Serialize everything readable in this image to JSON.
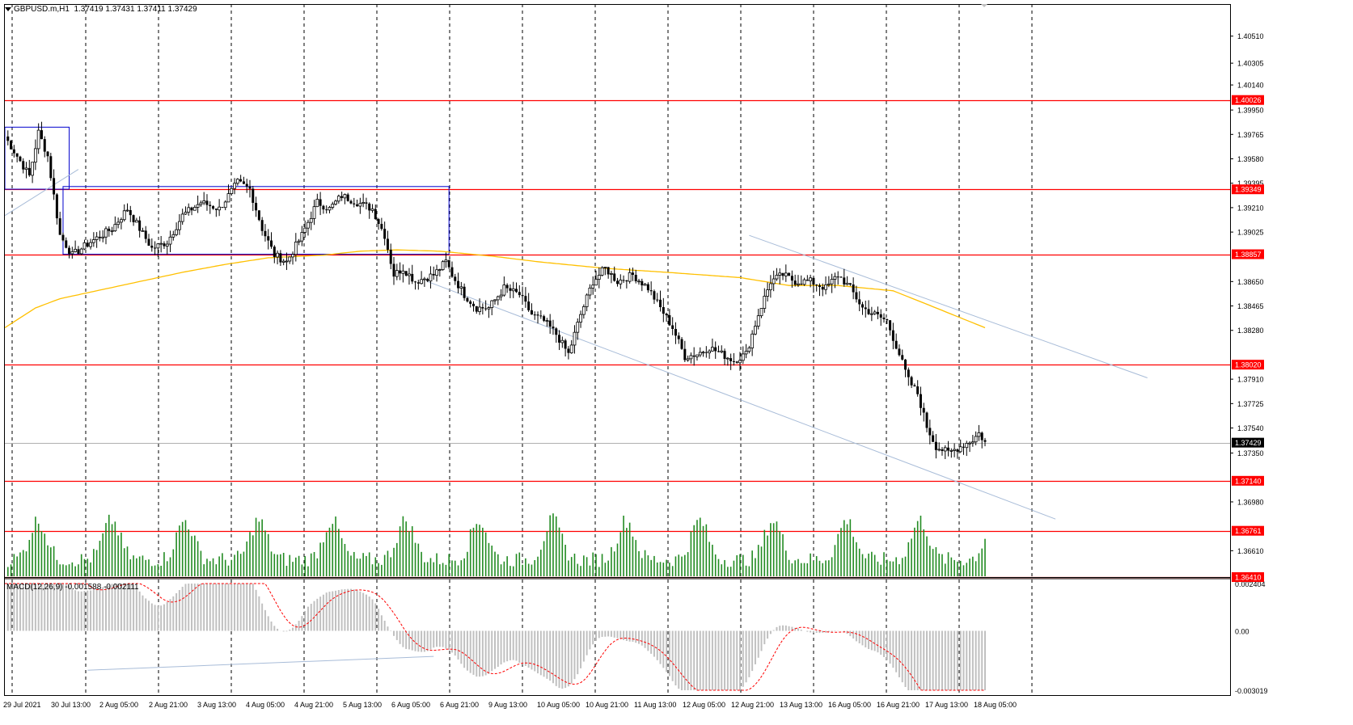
{
  "header": {
    "symbol": "GBPUSD.m,H1",
    "ohlc": "1.37419 1.37431 1.37411 1.37429"
  },
  "macd": {
    "label": "MACD(12,26,9) -0.001588 -0.002111",
    "scale_labels": [
      "0.002404",
      "0.00",
      "-0.003019"
    ]
  },
  "colors": {
    "background": "#ffffff",
    "candle": "#000000",
    "volume": "#228b22",
    "support_resistance": "#ff0000",
    "moving_average": "#ffc000",
    "range_box": "#0000cd",
    "channel": "#a8bcd8",
    "macd_histogram": "#c0c0c0",
    "macd_signal": "#ff0000",
    "price_tag_red": "#ff0000",
    "price_tag_current": "#000000"
  },
  "chart_data": {
    "type": "candlestick",
    "symbol": "GBPUSD.m",
    "timeframe": "H1",
    "ylim": [
      1.3641,
      1.406
    ],
    "y_tick_labels": [
      "1.40510",
      "1.40305",
      "1.40140",
      "1.39950",
      "1.39765",
      "1.39580",
      "1.39395",
      "1.39210",
      "1.39025",
      "1.38650",
      "1.38465",
      "1.38280",
      "1.37910",
      "1.37725",
      "1.37540",
      "1.37350",
      "1.36980",
      "1.36610"
    ],
    "x_tick_labels": [
      "29 Jul 2021",
      "30 Jul 13:00",
      "2 Aug 05:00",
      "2 Aug 21:00",
      "3 Aug 13:00",
      "4 Aug 05:00",
      "4 Aug 21:00",
      "5 Aug 13:00",
      "6 Aug 05:00",
      "6 Aug 21:00",
      "9 Aug 13:00",
      "10 Aug 05:00",
      "10 Aug 21:00",
      "11 Aug 13:00",
      "12 Aug 05:00",
      "12 Aug 21:00",
      "13 Aug 13:00",
      "16 Aug 05:00",
      "16 Aug 21:00",
      "17 Aug 13:00",
      "18 Aug 05:00"
    ],
    "horizontal_levels": [
      {
        "value": 1.40026,
        "label": "1.40026"
      },
      {
        "value": 1.39349,
        "label": "1.39349"
      },
      {
        "value": 1.38857,
        "label": "1.38857"
      },
      {
        "value": 1.3802,
        "label": "1.38020"
      },
      {
        "value": 1.3714,
        "label": "1.37140"
      },
      {
        "value": 1.36761,
        "label": "1.36761"
      },
      {
        "value": 1.3641,
        "label": "1.36410"
      }
    ],
    "current_price": {
      "value": 1.37429,
      "label": "1.37429"
    },
    "close_path": [
      [
        0,
        1.3975
      ],
      [
        4,
        1.396
      ],
      [
        8,
        1.3945
      ],
      [
        11,
        1.3978
      ],
      [
        14,
        1.396
      ],
      [
        16,
        1.393
      ],
      [
        18,
        1.39
      ],
      [
        22,
        1.3885
      ],
      [
        28,
        1.3895
      ],
      [
        35,
        1.3905
      ],
      [
        40,
        1.392
      ],
      [
        48,
        1.389
      ],
      [
        53,
        1.3895
      ],
      [
        58,
        1.3915
      ],
      [
        64,
        1.3925
      ],
      [
        70,
        1.392
      ],
      [
        76,
        1.394
      ],
      [
        80,
        1.3935
      ],
      [
        84,
        1.3905
      ],
      [
        88,
        1.3885
      ],
      [
        92,
        1.388
      ],
      [
        97,
        1.39
      ],
      [
        102,
        1.3925
      ],
      [
        106,
        1.392
      ],
      [
        110,
        1.393
      ],
      [
        115,
        1.3925
      ],
      [
        120,
        1.392
      ],
      [
        124,
        1.39
      ],
      [
        127,
        1.387
      ],
      [
        130,
        1.3875
      ],
      [
        134,
        1.3865
      ],
      [
        140,
        1.387
      ],
      [
        144,
        1.388
      ],
      [
        146,
        1.387
      ],
      [
        150,
        1.3855
      ],
      [
        154,
        1.3845
      ],
      [
        158,
        1.3845
      ],
      [
        163,
        1.386
      ],
      [
        168,
        1.3855
      ],
      [
        172,
        1.384
      ],
      [
        176,
        1.3835
      ],
      [
        180,
        1.3825
      ],
      [
        184,
        1.381
      ],
      [
        188,
        1.384
      ],
      [
        192,
        1.3865
      ],
      [
        196,
        1.3875
      ],
      [
        200,
        1.3865
      ],
      [
        205,
        1.387
      ],
      [
        210,
        1.386
      ],
      [
        214,
        1.3845
      ],
      [
        218,
        1.383
      ],
      [
        222,
        1.3808
      ],
      [
        226,
        1.381
      ],
      [
        230,
        1.3815
      ],
      [
        234,
        1.381
      ],
      [
        238,
        1.3805
      ],
      [
        242,
        1.381
      ],
      [
        246,
        1.384
      ],
      [
        250,
        1.3865
      ],
      [
        254,
        1.387
      ],
      [
        258,
        1.3865
      ],
      [
        263,
        1.3865
      ],
      [
        268,
        1.386
      ],
      [
        272,
        1.387
      ],
      [
        276,
        1.386
      ],
      [
        280,
        1.3845
      ],
      [
        284,
        1.384
      ],
      [
        288,
        1.3835
      ],
      [
        292,
        1.381
      ],
      [
        295,
        1.379
      ],
      [
        298,
        1.378
      ],
      [
        301,
        1.3755
      ],
      [
        304,
        1.374
      ],
      [
        308,
        1.3735
      ],
      [
        312,
        1.374
      ],
      [
        316,
        1.3745
      ],
      [
        318,
        1.375
      ],
      [
        320,
        1.3743
      ]
    ],
    "moving_average": [
      [
        0,
        1.383
      ],
      [
        10,
        1.3845
      ],
      [
        18,
        1.3852
      ],
      [
        38,
        1.3862
      ],
      [
        58,
        1.3872
      ],
      [
        72,
        1.3878
      ],
      [
        86,
        1.3883
      ],
      [
        104,
        1.3885
      ],
      [
        116,
        1.3888
      ],
      [
        128,
        1.3889
      ],
      [
        142,
        1.3888
      ],
      [
        160,
        1.3884
      ],
      [
        174,
        1.388
      ],
      [
        196,
        1.3875
      ],
      [
        216,
        1.3872
      ],
      [
        240,
        1.3868
      ],
      [
        256,
        1.3862
      ],
      [
        272,
        1.3862
      ],
      [
        290,
        1.3858
      ],
      [
        304,
        1.3845
      ],
      [
        320,
        1.383
      ]
    ],
    "range_boxes": [
      {
        "x": [
          0,
          21
        ],
        "y": [
          1.3935,
          1.3982
        ]
      },
      {
        "x": [
          19,
          145
        ],
        "y": [
          1.38857,
          1.3937
        ]
      }
    ],
    "channel_lines": [
      {
        "x": [
          138,
          343
        ],
        "y": [
          1.3865,
          1.3685
        ]
      },
      {
        "x": [
          243,
          373
        ],
        "y": [
          1.39,
          1.3792
        ]
      }
    ],
    "volume": {
      "max": 1.0
    },
    "macd": {
      "range": [
        -0.003019,
        0.002404
      ]
    }
  }
}
